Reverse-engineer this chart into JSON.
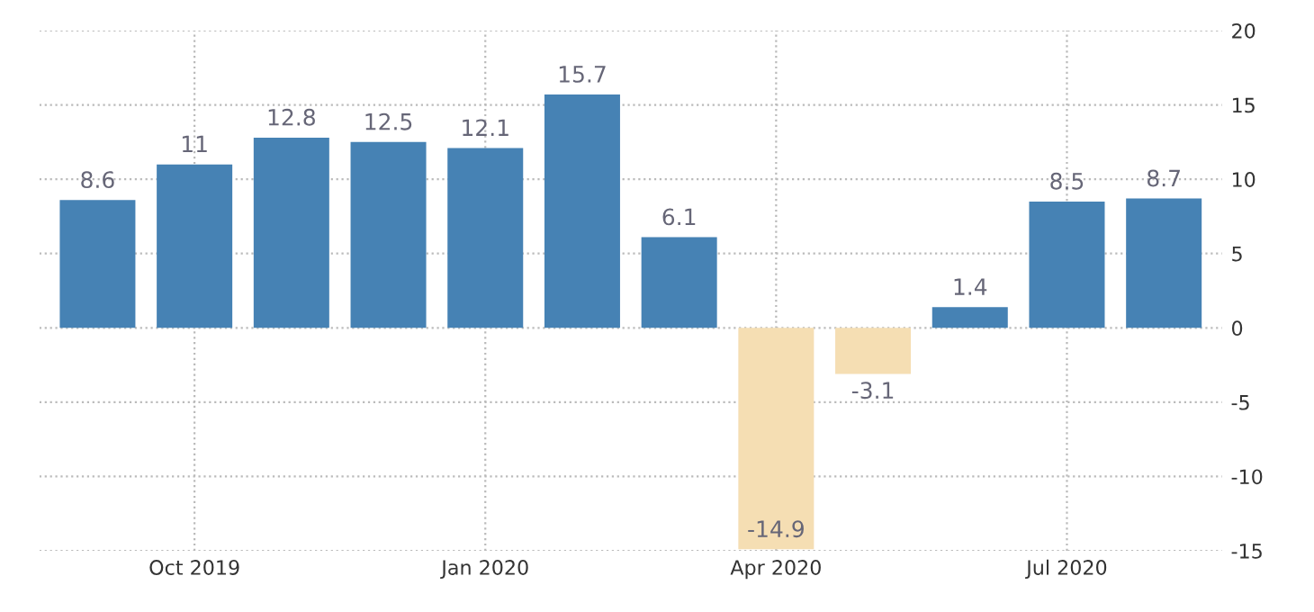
{
  "chart_data": {
    "type": "bar",
    "categories": [
      null,
      "Oct 2019",
      null,
      null,
      "Jan 2020",
      null,
      null,
      "Apr 2020",
      null,
      null,
      "Jul 2020",
      null
    ],
    "values": [
      8.6,
      11,
      12.8,
      12.5,
      12.1,
      15.7,
      6.1,
      -14.9,
      -3.1,
      1.4,
      8.5,
      8.7
    ],
    "colors": [
      "#4682b4",
      "#4682b4",
      "#4682b4",
      "#4682b4",
      "#4682b4",
      "#4682b4",
      "#4682b4",
      "#f5deb3",
      "#f5deb3",
      "#4682b4",
      "#4682b4",
      "#4682b4"
    ],
    "ylim": [
      -15,
      20
    ],
    "yticks": [
      -15,
      -10,
      -5,
      0,
      5,
      10,
      15,
      20
    ],
    "grid": true,
    "data_labels": true
  }
}
